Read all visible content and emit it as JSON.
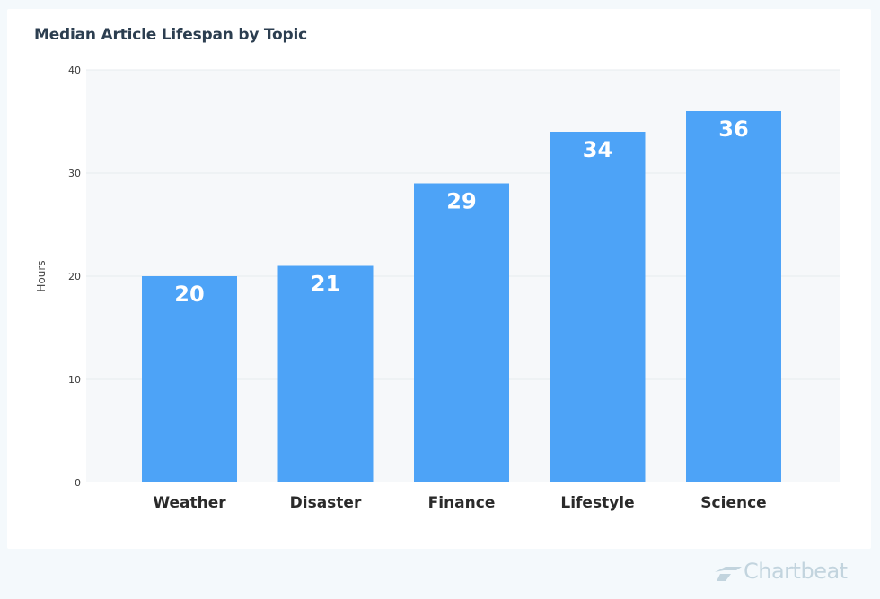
{
  "chart_data": {
    "type": "bar",
    "title": "Median Article Lifespan by Topic",
    "xlabel": "",
    "ylabel": "Hours",
    "categories": [
      "Weather",
      "Disaster",
      "Finance",
      "Lifestyle",
      "Science"
    ],
    "values": [
      20,
      21,
      29,
      34,
      36
    ],
    "ylim": [
      0,
      40
    ],
    "yticks": [
      0,
      10,
      20,
      30,
      40
    ],
    "grid": true,
    "legend": "none",
    "colors": {
      "bar": "#4da3f7",
      "plot_background": "#f6f8fa",
      "gridline": "#e7ebef",
      "label_inside_bar": "#ffffff",
      "tick_text": "#3a3a3a",
      "title_text": "#2c3e50"
    }
  },
  "branding": {
    "logo_text": "Chartbeat",
    "logo_icon": "chartbeat-logo-icon"
  }
}
